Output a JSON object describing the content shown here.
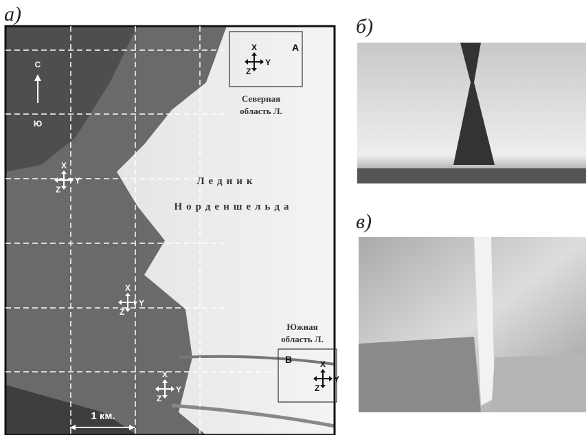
{
  "panel_a": {
    "label": "а)",
    "north": "С",
    "south": "Ю",
    "box_a": "A",
    "box_b": "В",
    "north_region": [
      "Северная",
      "область Л."
    ],
    "glacier": [
      "Ледник",
      "Норденшельда"
    ],
    "south_region": [
      "Южная",
      "область Л."
    ],
    "scale": "1 км.",
    "axes": [
      {
        "x": "X",
        "y": "Y",
        "z": "Z"
      },
      {
        "x": "X",
        "y": "Y",
        "z": "Z"
      },
      {
        "x": "X",
        "y": "Y",
        "z": "Z"
      },
      {
        "x": "X",
        "y": "Y",
        "z": "Z"
      },
      {
        "x": "X",
        "y": "Y",
        "z": "Z"
      }
    ]
  },
  "panel_b": {
    "label": "б)"
  },
  "panel_c": {
    "label": "в)"
  }
}
